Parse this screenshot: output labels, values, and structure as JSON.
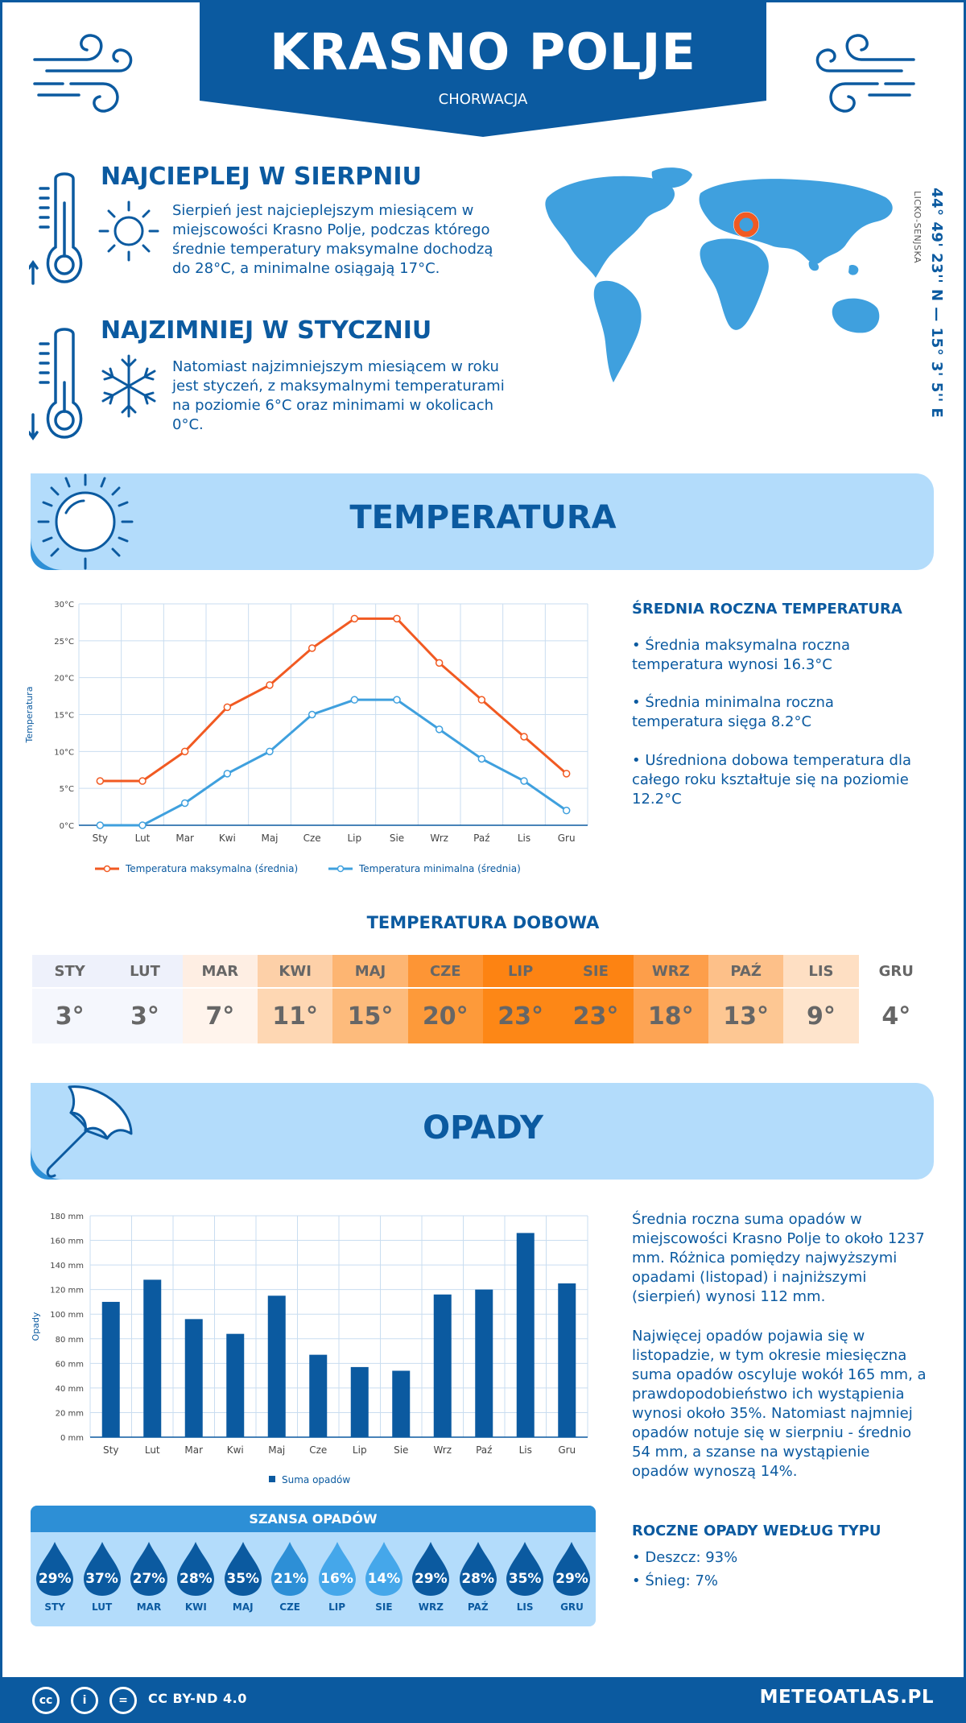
{
  "header": {
    "title": "KRASNO POLJE",
    "subtitle": "CHORWACJA"
  },
  "location": {
    "coordinates": "44° 49' 23'' N — 15° 3' 5'' E",
    "region": "LICKO-SENJSKA"
  },
  "warmest": {
    "title": "NAJCIEPLEJ W SIERPNIU",
    "text": "Sierpień jest najcieplejszym miesiącem w miejscowości Krasno Polje, podczas którego średnie temperatury maksymalne dochodzą do 28°C, a minimalne osiągają 17°C."
  },
  "coldest": {
    "title": "NAJZIMNIEJ W STYCZNIU",
    "text": "Natomiast najzimniejszym miesiącem w roku jest styczeń, z maksymalnymi temperaturami na poziomie 6°C oraz minimami w okolicach 0°C."
  },
  "temperature_section": {
    "title": "TEMPERATURA",
    "side_title": "ŚREDNIA ROCZNA TEMPERATURA",
    "bullets": [
      "• Średnia maksymalna roczna temperatura wynosi 16.3°C",
      "• Średnia minimalna roczna temperatura sięga 8.2°C",
      "• Uśredniona dobowa temperatura dla całego roku kształtuje się na poziomie 12.2°C"
    ],
    "daily_title": "TEMPERATURA DOBOWA",
    "daily": [
      {
        "month": "STY",
        "value": "3°",
        "bg": "#f5f7fd",
        "head_bg": "#eef1fb"
      },
      {
        "month": "LUT",
        "value": "3°",
        "bg": "#f5f7fd",
        "head_bg": "#eef1fb"
      },
      {
        "month": "MAR",
        "value": "7°",
        "bg": "#fff4ec",
        "head_bg": "#feeee3"
      },
      {
        "month": "KWI",
        "value": "11°",
        "bg": "#fed7b3",
        "head_bg": "#fdd0a8"
      },
      {
        "month": "MAJ",
        "value": "15°",
        "bg": "#fdbb7c",
        "head_bg": "#fdb572"
      },
      {
        "month": "CZE",
        "value": "20°",
        "bg": "#fd9a3a",
        "head_bg": "#fd9535"
      },
      {
        "month": "LIP",
        "value": "23°",
        "bg": "#fd8716",
        "head_bg": "#fd8312"
      },
      {
        "month": "SIE",
        "value": "23°",
        "bg": "#fd8716",
        "head_bg": "#fd8312"
      },
      {
        "month": "WRZ",
        "value": "18°",
        "bg": "#fda454",
        "head_bg": "#fd9e4a"
      },
      {
        "month": "PAŹ",
        "value": "13°",
        "bg": "#fdc793",
        "head_bg": "#fdc089"
      },
      {
        "month": "LIS",
        "value": "9°",
        "bg": "#fee4cc",
        "head_bg": "#fedfc3"
      },
      {
        "month": "GRU",
        "value": "4°",
        "bg": "#ffffff",
        "head_bg": "#ffffff"
      }
    ]
  },
  "precip_section": {
    "title": "OPADY",
    "text1": "Średnia roczna suma opadów w miejscowości Krasno Polje to około 1237 mm. Różnica pomiędzy najwyższymi opadami (listopad) i najniższymi (sierpień) wynosi 112 mm.",
    "text2": "Najwięcej opadów pojawia się w listopadzie, w tym okresie miesięczna suma opadów oscyluje wokół 165 mm, a prawdopodobieństwo ich wystąpienia wynosi około 35%. Natomiast najmniej opadów notuje się w sierpniu - średnio 54 mm, a szanse na wystąpienie opadów wynoszą 14%.",
    "type_title": "ROCZNE OPADY WEDŁUG TYPU",
    "types": [
      "• Deszcz: 93%",
      "• Śnieg: 7%"
    ],
    "chance_title": "SZANSA OPADÓW",
    "chance": [
      {
        "month": "STY",
        "pct": "29%",
        "color": "#0b5aa0"
      },
      {
        "month": "LUT",
        "pct": "37%",
        "color": "#0b5aa0"
      },
      {
        "month": "MAR",
        "pct": "27%",
        "color": "#0b5aa0"
      },
      {
        "month": "KWI",
        "pct": "28%",
        "color": "#0b5aa0"
      },
      {
        "month": "MAJ",
        "pct": "35%",
        "color": "#0b5aa0"
      },
      {
        "month": "CZE",
        "pct": "21%",
        "color": "#2d8fd6"
      },
      {
        "month": "LIP",
        "pct": "16%",
        "color": "#45a7ea"
      },
      {
        "month": "SIE",
        "pct": "14%",
        "color": "#45a7ea"
      },
      {
        "month": "WRZ",
        "pct": "29%",
        "color": "#0b5aa0"
      },
      {
        "month": "PAŹ",
        "pct": "28%",
        "color": "#0b5aa0"
      },
      {
        "month": "LIS",
        "pct": "35%",
        "color": "#0b5aa0"
      },
      {
        "month": "GRU",
        "pct": "29%",
        "color": "#0b5aa0"
      }
    ]
  },
  "footer": {
    "license": "CC BY-ND 4.0",
    "site": "METEOATLAS.PL",
    "cc_icons": [
      "cc",
      "i",
      "="
    ]
  },
  "colors": {
    "primary": "#0b5aa0",
    "light": "#b3dcfb",
    "max_line": "#f15a22",
    "min_line": "#3fa0de"
  },
  "chart_data": [
    {
      "type": "line",
      "categories": [
        "Sty",
        "Lut",
        "Mar",
        "Kwi",
        "Maj",
        "Cze",
        "Lip",
        "Sie",
        "Wrz",
        "Paź",
        "Lis",
        "Gru"
      ],
      "series": [
        {
          "name": "Temperatura maksymalna (średnia)",
          "values": [
            6,
            6,
            10,
            16,
            19,
            24,
            28,
            28,
            22,
            17,
            12,
            7
          ]
        },
        {
          "name": "Temperatura minimalna (średnia)",
          "values": [
            0,
            0,
            3,
            7,
            10,
            15,
            17,
            17,
            13,
            9,
            6,
            2
          ]
        }
      ],
      "ylabel": "Temperatura",
      "ylim": [
        0,
        30
      ],
      "yticks": [
        "0°C",
        "5°C",
        "10°C",
        "15°C",
        "20°C",
        "25°C",
        "30°C"
      ],
      "grid": true,
      "legend": "bottom"
    },
    {
      "type": "bar",
      "categories": [
        "Sty",
        "Lut",
        "Mar",
        "Kwi",
        "Maj",
        "Cze",
        "Lip",
        "Sie",
        "Wrz",
        "Paź",
        "Lis",
        "Gru"
      ],
      "series": [
        {
          "name": "Suma opadów",
          "values": [
            110,
            128,
            96,
            84,
            115,
            67,
            57,
            54,
            116,
            120,
            166,
            125
          ]
        }
      ],
      "ylabel": "Opady",
      "ylim": [
        0,
        180
      ],
      "yticks": [
        "0 mm",
        "20 mm",
        "40 mm",
        "60 mm",
        "80 mm",
        "100 mm",
        "120 mm",
        "140 mm",
        "160 mm",
        "180 mm"
      ],
      "grid": true,
      "legend": "bottom"
    }
  ]
}
